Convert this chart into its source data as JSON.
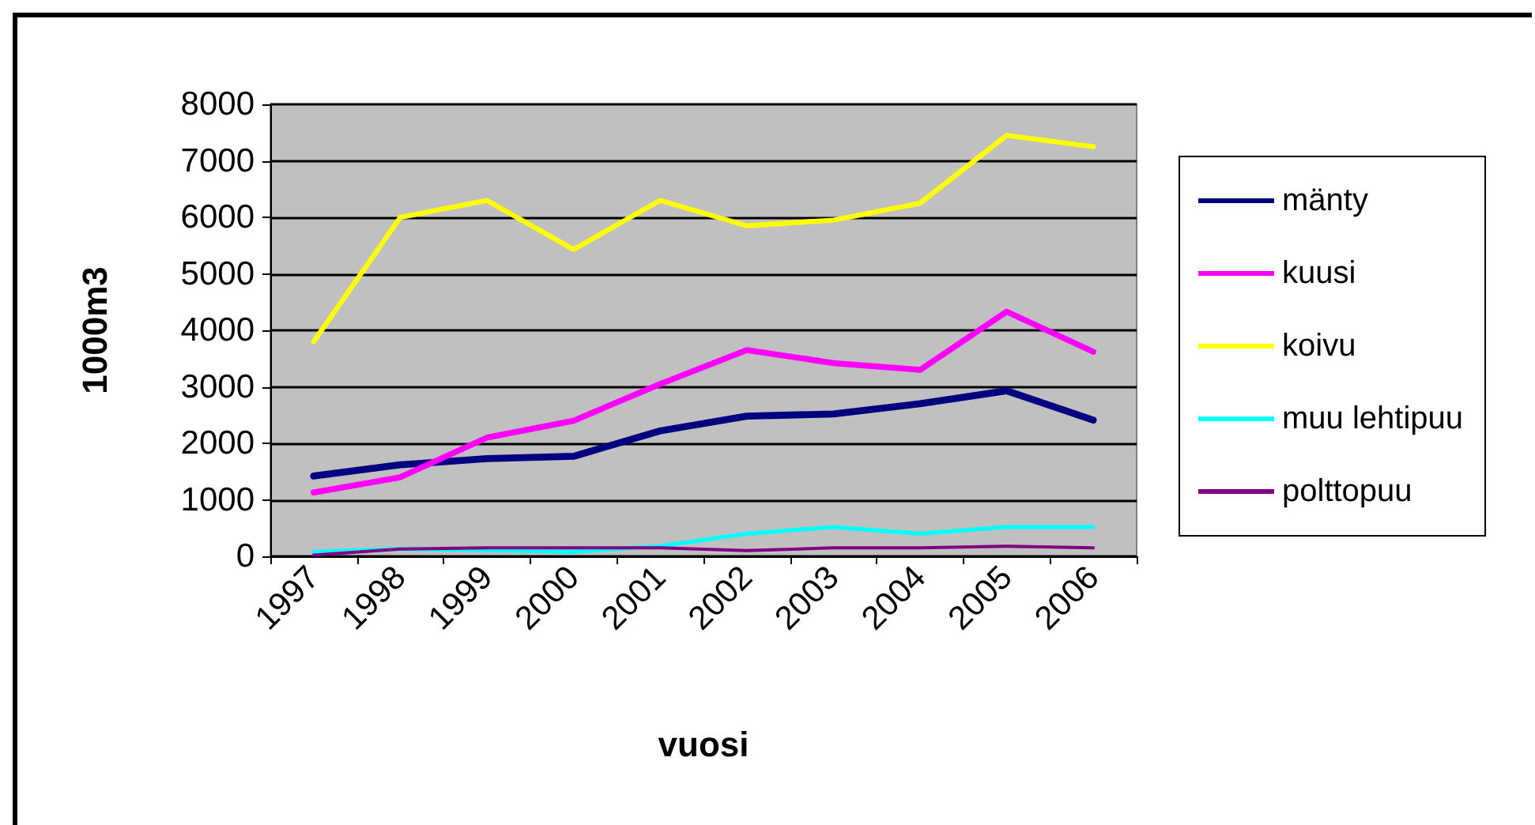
{
  "chart_data": {
    "type": "line",
    "xlabel": "vuosi",
    "ylabel": "1000m3",
    "categories": [
      "1997",
      "1998",
      "1999",
      "2000",
      "2001",
      "2002",
      "2003",
      "2004",
      "2005",
      "2006"
    ],
    "series": [
      {
        "name": "mänty",
        "color": "#000080",
        "values": [
          1420,
          1620,
          1730,
          1770,
          2220,
          2480,
          2520,
          2700,
          2930,
          2410
        ]
      },
      {
        "name": "kuusi",
        "color": "#ff00ff",
        "values": [
          1130,
          1400,
          2100,
          2400,
          3050,
          3650,
          3420,
          3300,
          4330,
          3620
        ]
      },
      {
        "name": "koivu",
        "color": "#ffff00",
        "values": [
          3800,
          6000,
          6300,
          5430,
          6300,
          5850,
          5950,
          6250,
          7450,
          7250
        ]
      },
      {
        "name": "muu lehtipuu",
        "color": "#00ffff",
        "values": [
          80,
          130,
          110,
          80,
          180,
          400,
          520,
          400,
          520,
          520
        ]
      },
      {
        "name": "polttopuu",
        "color": "#800080",
        "values": [
          20,
          130,
          150,
          150,
          150,
          100,
          150,
          150,
          180,
          150
        ]
      }
    ],
    "ylim": [
      0,
      8000
    ],
    "yticks": [
      0,
      1000,
      2000,
      3000,
      4000,
      5000,
      6000,
      7000,
      8000
    ],
    "grid": "y",
    "legend": "right",
    "marker": "none",
    "line_style": "solid"
  }
}
